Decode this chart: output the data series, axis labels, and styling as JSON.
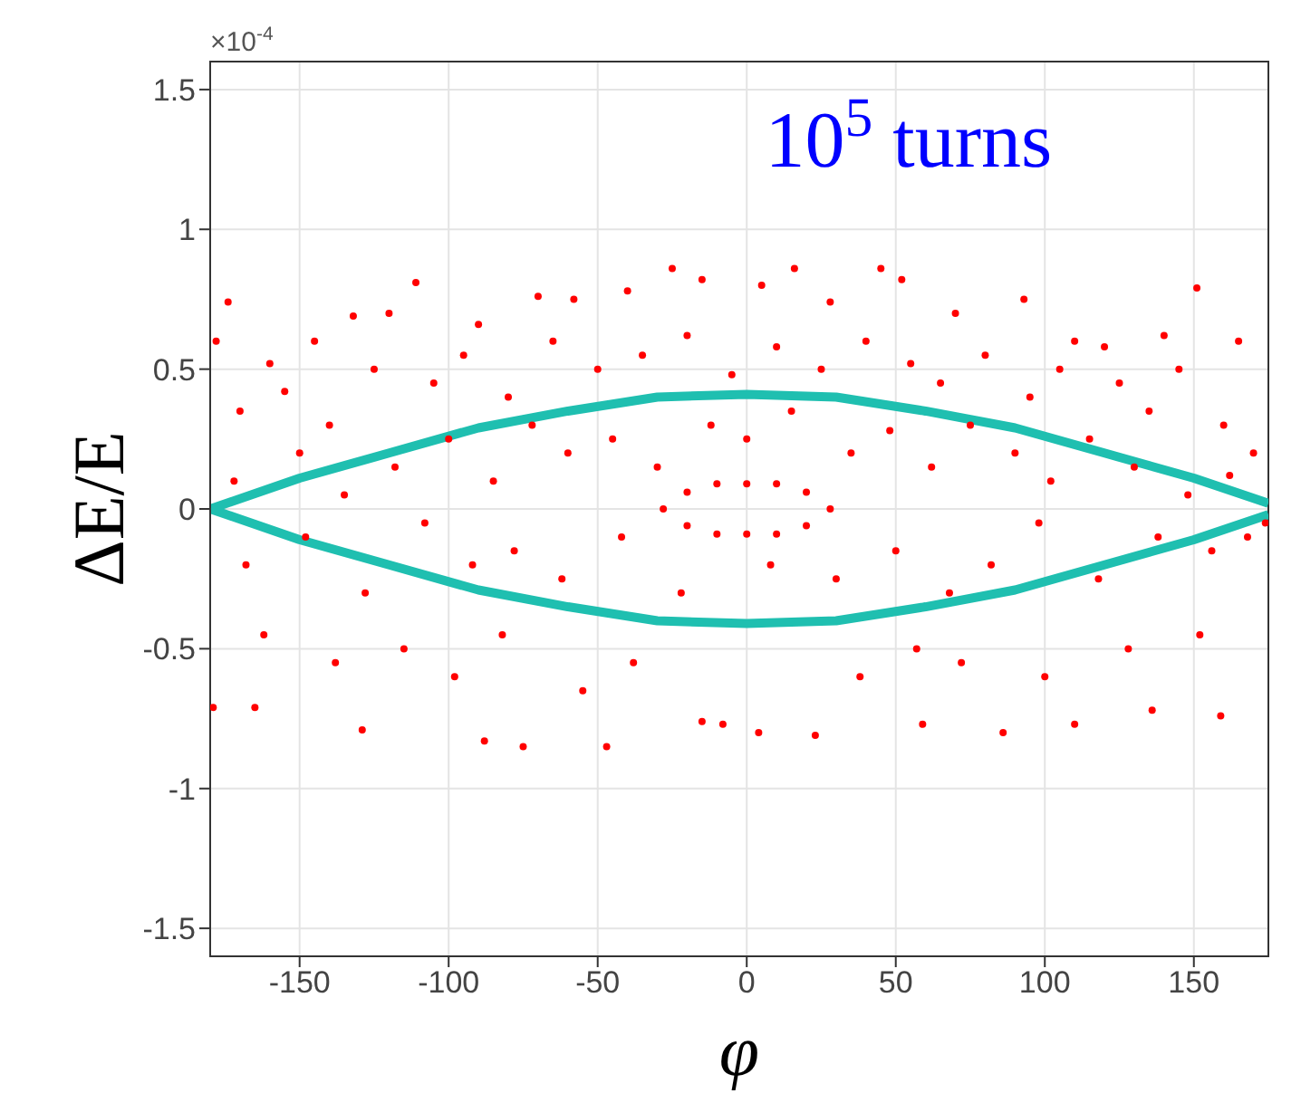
{
  "chart_data": {
    "type": "scatter",
    "title": "10$^{5}$ turns",
    "xlabel": "φ",
    "ylabel": "ΔE/E",
    "annotations": [
      "×10$^{-4}$"
    ],
    "xlim": [
      -180,
      175
    ],
    "xticks": [
      -150,
      -100,
      -50,
      0,
      50,
      100,
      150
    ],
    "ylim": [
      -1.6,
      1.6
    ],
    "yticks": [
      -1.5,
      -1,
      -0.5,
      0,
      0.5,
      1,
      1.5
    ],
    "grid": true,
    "series": [
      {
        "marker": "circle",
        "color": "#ff0000",
        "x": [
          -174,
          -111,
          -25,
          -132,
          -70,
          -58,
          -178,
          -160,
          -145,
          -120,
          -90,
          -40,
          -15,
          5,
          16,
          28,
          45,
          52,
          70,
          93,
          110,
          120,
          140,
          151,
          165,
          -179,
          -165,
          -129,
          -88,
          -75,
          -47,
          -15,
          -8,
          4,
          23,
          59,
          86,
          110,
          136,
          159,
          -170,
          -155,
          -140,
          -125,
          -105,
          -95,
          -80,
          -65,
          -50,
          -35,
          -20,
          -5,
          10,
          25,
          40,
          55,
          65,
          80,
          95,
          105,
          125,
          135,
          145,
          160,
          170,
          -172,
          -150,
          -135,
          -118,
          -100,
          -85,
          -72,
          -60,
          -45,
          -30,
          -12,
          0,
          15,
          35,
          48,
          62,
          75,
          90,
          102,
          115,
          130,
          148,
          162,
          174,
          -168,
          -148,
          -128,
          -108,
          -92,
          -78,
          -62,
          -42,
          -22,
          8,
          30,
          50,
          68,
          82,
          98,
          118,
          138,
          156,
          168,
          -162,
          -138,
          -115,
          -98,
          -82,
          -55,
          -38,
          38,
          57,
          72,
          100,
          128,
          152,
          -28,
          -20,
          -10,
          0,
          10,
          20,
          28,
          20,
          10,
          0,
          -10,
          -20
        ],
        "values": [
          0.74,
          0.81,
          0.86,
          0.69,
          0.76,
          0.75,
          0.6,
          0.52,
          0.6,
          0.7,
          0.66,
          0.78,
          0.82,
          0.8,
          0.86,
          0.74,
          0.86,
          0.82,
          0.7,
          0.75,
          0.6,
          0.58,
          0.62,
          0.79,
          0.6,
          -0.71,
          -0.71,
          -0.79,
          -0.83,
          -0.85,
          -0.85,
          -0.76,
          -0.77,
          -0.8,
          -0.81,
          -0.77,
          -0.8,
          -0.77,
          -0.72,
          -0.74,
          0.35,
          0.42,
          0.3,
          0.5,
          0.45,
          0.55,
          0.4,
          0.6,
          0.5,
          0.55,
          0.62,
          0.48,
          0.58,
          0.5,
          0.6,
          0.52,
          0.45,
          0.55,
          0.4,
          0.5,
          0.45,
          0.35,
          0.5,
          0.3,
          0.2,
          0.1,
          0.2,
          0.05,
          0.15,
          0.25,
          0.1,
          0.3,
          0.2,
          0.25,
          0.15,
          0.3,
          0.25,
          0.35,
          0.2,
          0.28,
          0.15,
          0.3,
          0.2,
          0.1,
          0.25,
          0.15,
          0.05,
          0.12,
          -0.05,
          -0.2,
          -0.1,
          -0.3,
          -0.05,
          -0.2,
          -0.15,
          -0.25,
          -0.1,
          -0.3,
          -0.2,
          -0.25,
          -0.15,
          -0.3,
          -0.2,
          -0.05,
          -0.25,
          -0.1,
          -0.15,
          -0.1,
          -0.45,
          -0.55,
          -0.5,
          -0.6,
          -0.45,
          -0.65,
          -0.55,
          -0.6,
          -0.5,
          -0.55,
          -0.6,
          -0.5,
          -0.45,
          0,
          0.06,
          0.09,
          0.09,
          0.09,
          0.06,
          0,
          -0.06,
          -0.09,
          -0.09,
          -0.09,
          -0.06
        ]
      },
      {
        "type": "line",
        "color": "#1fbfb0",
        "x": [
          -180,
          -150,
          -120,
          -90,
          -60,
          -30,
          0,
          30,
          60,
          90,
          120,
          150,
          175
        ],
        "values": [
          0,
          0.11,
          0.2,
          0.29,
          0.35,
          0.4,
          0.41,
          0.4,
          0.35,
          0.29,
          0.2,
          0.11,
          0.02
        ]
      },
      {
        "type": "line",
        "color": "#1fbfb0",
        "x": [
          -180,
          -150,
          -120,
          -90,
          -60,
          -30,
          0,
          30,
          60,
          90,
          120,
          150,
          175
        ],
        "values": [
          0,
          -0.11,
          -0.2,
          -0.29,
          -0.35,
          -0.4,
          -0.41,
          -0.4,
          -0.35,
          -0.29,
          -0.2,
          -0.11,
          -0.02
        ]
      }
    ]
  }
}
